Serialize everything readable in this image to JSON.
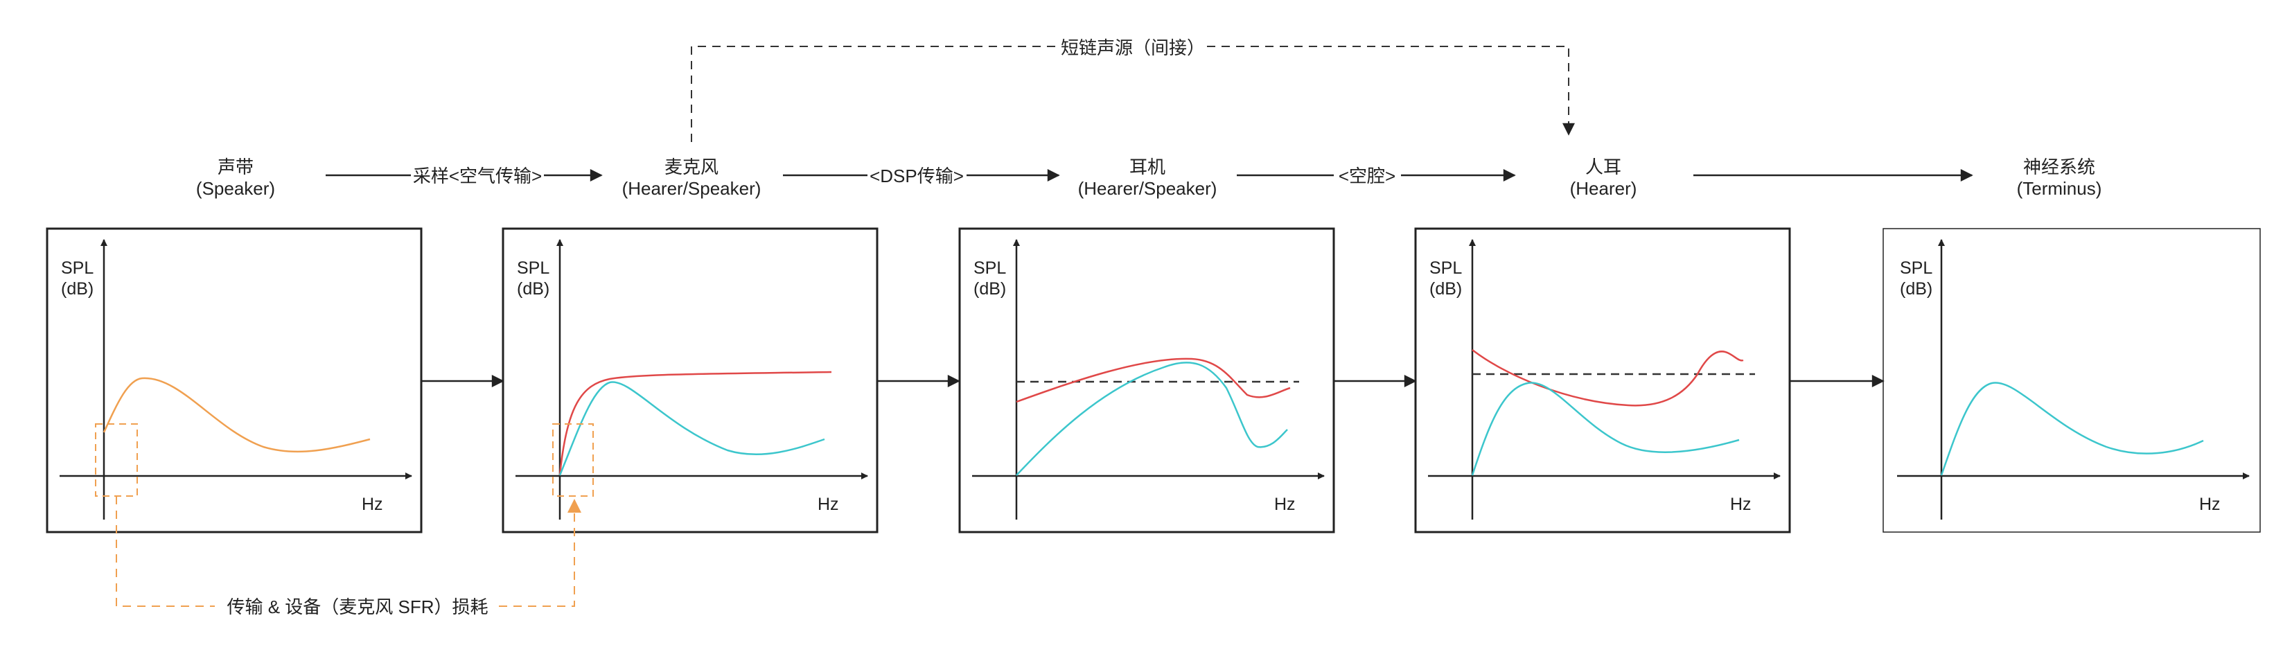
{
  "stages": [
    {
      "name": "声带",
      "sub": "(Speaker)"
    },
    {
      "name": "麦克风",
      "sub": "(Hearer/Speaker)"
    },
    {
      "name": "耳机",
      "sub": "(Hearer/Speaker)"
    },
    {
      "name": "人耳",
      "sub": "(Hearer)"
    },
    {
      "name": "神经系统",
      "sub": "(Terminus)"
    }
  ],
  "connectors": [
    "采样<空气传输>",
    "<DSP传输>",
    "<空腔>",
    ""
  ],
  "top_path_label": "短链声源（间接）",
  "bottom_path_label": "传输 & 设备（麦克风 SFR）损耗",
  "axis": {
    "y_label_line1": "SPL",
    "y_label_line2": "(dB)",
    "x_label": "Hz"
  },
  "colors": {
    "orange": "#f0a050",
    "red": "#e04848",
    "cyan": "#3cc6cc",
    "frame": "#222222",
    "dashed": "#333333"
  }
}
